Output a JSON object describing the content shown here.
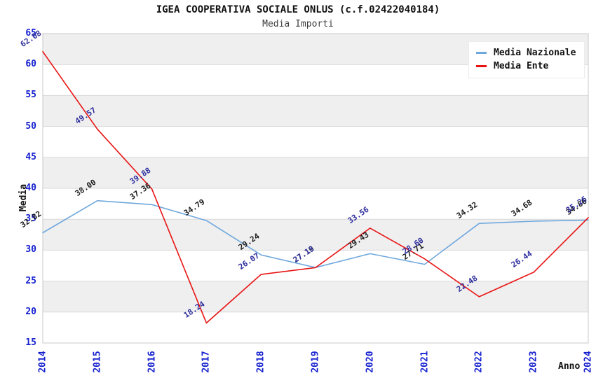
{
  "title": "IGEA COOPERATIVA SOCIALE ONLUS (c.f.02422040184)",
  "subtitle": "Media Importi",
  "chart_data": {
    "type": "line",
    "title": "IGEA COOPERATIVA SOCIALE ONLUS (c.f.02422040184)",
    "subtitle": "Media Importi",
    "xlabel": "Anno",
    "ylabel": "Media",
    "x": [
      2014,
      2015,
      2016,
      2017,
      2018,
      2019,
      2020,
      2021,
      2022,
      2023,
      2024
    ],
    "series": [
      {
        "name": "Media Nazionale",
        "color": "#6fa8dd",
        "label_color": "#1c1c1c",
        "values": [
          32.82,
          38.0,
          37.36,
          34.79,
          29.24,
          27.19,
          29.43,
          27.71,
          34.32,
          34.68,
          34.86
        ]
      },
      {
        "name": "Media Ente",
        "color": "#e81414",
        "label_color": "#2d2d9e",
        "values": [
          62.08,
          49.57,
          39.88,
          18.24,
          26.07,
          27.18,
          33.56,
          28.6,
          22.48,
          26.44,
          35.26
        ]
      }
    ],
    "ylim": [
      15,
      65
    ],
    "ytick_step": 5,
    "yticks": [
      15,
      20,
      25,
      30,
      35,
      40,
      45,
      50,
      55,
      60,
      65
    ],
    "grid": "horizontal-bands-alternating",
    "band_colors": [
      "#efefef",
      "#ffffff"
    ],
    "gridline_color": "#d9d9d9",
    "border_color": "#c9c9c9",
    "axis_tick_color": "#1520cf",
    "legend_position": "top-right",
    "legend": [
      "Media Nazionale",
      "Media Ente"
    ]
  }
}
